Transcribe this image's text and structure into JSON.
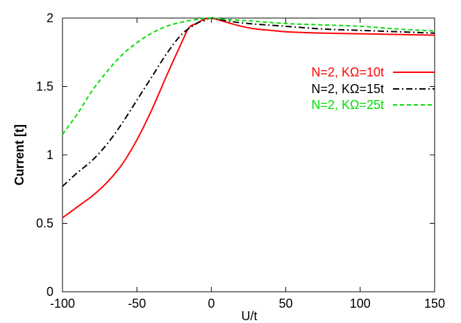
{
  "chart_data": {
    "type": "line",
    "title": "",
    "xlabel": "U/t",
    "ylabel": "Current [t]",
    "xlim": [
      -100,
      150
    ],
    "ylim": [
      0,
      2
    ],
    "xticks": [
      -100,
      -50,
      0,
      50,
      100,
      150
    ],
    "yticks": [
      0,
      0.5,
      1,
      1.5,
      2
    ],
    "xtick_labels": [
      "-100",
      "-50",
      "0",
      "50",
      "100",
      "150"
    ],
    "ytick_labels": [
      "0",
      "0.5",
      "1",
      "1.5",
      "2"
    ],
    "grid": false,
    "legend_position": "right",
    "series": [
      {
        "name": "N=2, KΩ=10t",
        "color": "#ff0000",
        "dash": "solid",
        "x": [
          -100,
          -90,
          -80,
          -70,
          -60,
          -50,
          -40,
          -30,
          -20,
          -15,
          -10,
          -5,
          0,
          10,
          20,
          30,
          40,
          50,
          75,
          100,
          125,
          150
        ],
        "y": [
          0.54,
          0.62,
          0.7,
          0.8,
          0.93,
          1.11,
          1.33,
          1.58,
          1.82,
          1.93,
          1.96,
          1.99,
          2.0,
          1.97,
          1.94,
          1.92,
          1.91,
          1.9,
          1.89,
          1.885,
          1.88,
          1.875
        ]
      },
      {
        "name": "N=2, KΩ=15t",
        "color": "#000000",
        "dash": "dashdot",
        "x": [
          -100,
          -90,
          -80,
          -70,
          -60,
          -50,
          -40,
          -30,
          -20,
          -10,
          -5,
          0,
          10,
          25,
          50,
          75,
          100,
          125,
          150
        ],
        "y": [
          0.77,
          0.87,
          0.96,
          1.08,
          1.23,
          1.4,
          1.57,
          1.74,
          1.88,
          1.96,
          1.98,
          2.0,
          1.98,
          1.96,
          1.94,
          1.92,
          1.91,
          1.9,
          1.89
        ]
      },
      {
        "name": "N=2, KΩ=25t",
        "color": "#00dd00",
        "dash": "dashed",
        "x": [
          -100,
          -90,
          -80,
          -70,
          -60,
          -50,
          -40,
          -30,
          -20,
          -10,
          0,
          10,
          25,
          50,
          75,
          100,
          125,
          150
        ],
        "y": [
          1.15,
          1.3,
          1.47,
          1.61,
          1.73,
          1.82,
          1.89,
          1.94,
          1.97,
          1.99,
          2.0,
          1.99,
          1.98,
          1.96,
          1.95,
          1.94,
          1.92,
          1.905
        ]
      }
    ]
  }
}
